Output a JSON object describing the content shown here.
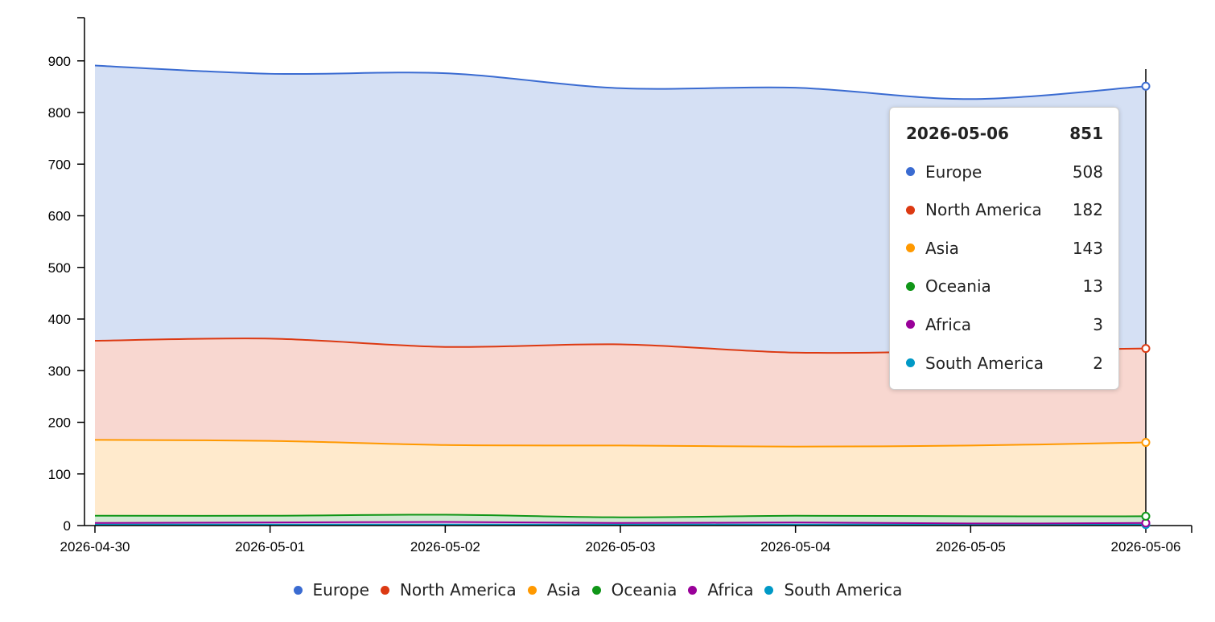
{
  "chart_data": {
    "type": "area",
    "stacked": true,
    "x": [
      "2026-04-30",
      "2026-05-01",
      "2026-05-02",
      "2026-05-03",
      "2026-05-04",
      "2026-05-05",
      "2026-05-06"
    ],
    "series": [
      {
        "name": "Europe",
        "color": "#3a6bd1",
        "fill": "#d5e0f4",
        "values": [
          533,
          513,
          530,
          496,
          513,
          488,
          508
        ]
      },
      {
        "name": "North America",
        "color": "#dc3912",
        "fill": "#f8d7d0",
        "values": [
          192,
          198,
          190,
          196,
          182,
          183,
          182
        ]
      },
      {
        "name": "Asia",
        "color": "#ff9900",
        "fill": "#ffeacc",
        "values": [
          147,
          145,
          135,
          139,
          134,
          137,
          143
        ]
      },
      {
        "name": "Oceania",
        "color": "#109618",
        "fill": "#cfead1",
        "values": [
          14,
          13,
          14,
          11,
          13,
          14,
          13
        ]
      },
      {
        "name": "Africa",
        "color": "#990099",
        "fill": "#ebcceb",
        "values": [
          3,
          4,
          5,
          3,
          4,
          2,
          3
        ]
      },
      {
        "name": "South America",
        "color": "#0099c6",
        "fill": "#cceaf4",
        "values": [
          2,
          2,
          2,
          2,
          2,
          2,
          2
        ]
      }
    ],
    "y_ticks": [
      "0",
      "100",
      "200",
      "300",
      "400",
      "500",
      "600",
      "700",
      "800",
      "900"
    ],
    "ylim": [
      0,
      900
    ],
    "grid": false,
    "legend": "bottom",
    "hover_index": 6
  },
  "tooltip": {
    "date": "2026-05-06",
    "total": "851",
    "rows": [
      {
        "name": "Europe",
        "value": "508",
        "color": "#3a6bd1"
      },
      {
        "name": "North America",
        "value": "182",
        "color": "#dc3912"
      },
      {
        "name": "Asia",
        "value": "143",
        "color": "#ff9900"
      },
      {
        "name": "Oceania",
        "value": "13",
        "color": "#109618"
      },
      {
        "name": "Africa",
        "value": "3",
        "color": "#990099"
      },
      {
        "name": "South America",
        "value": "2",
        "color": "#0099c6"
      }
    ]
  },
  "legend": [
    {
      "label": "Europe",
      "color": "#3a6bd1"
    },
    {
      "label": "North America",
      "color": "#dc3912"
    },
    {
      "label": "Asia",
      "color": "#ff9900"
    },
    {
      "label": "Oceania",
      "color": "#109618"
    },
    {
      "label": "Africa",
      "color": "#990099"
    },
    {
      "label": "South America",
      "color": "#0099c6"
    }
  ]
}
